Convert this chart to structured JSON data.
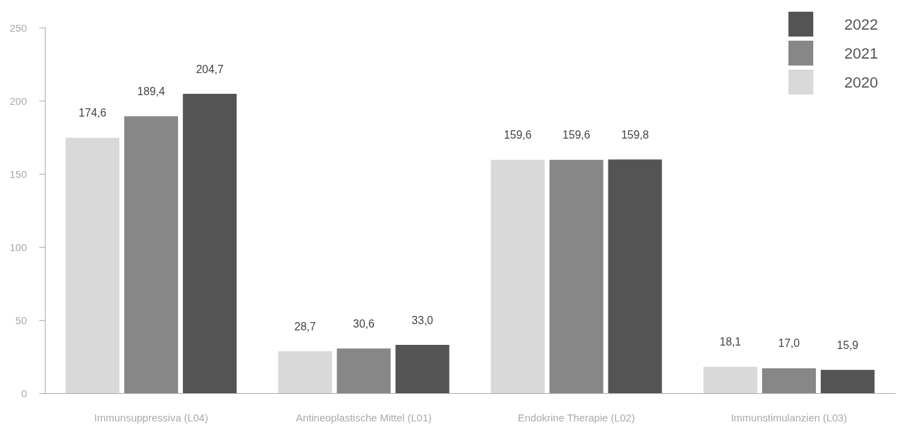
{
  "chart_data": {
    "type": "bar",
    "categories": [
      "Immunsuppressiva (L04)",
      "Antineoplastische Mittel (L01)",
      "Endokrine Therapie (L02)",
      "Immunstimulanzien (L03)"
    ],
    "series": [
      {
        "name": "2020",
        "color": "#d9d9d9",
        "values": [
          174.6,
          28.7,
          159.6,
          18.1
        ],
        "value_labels": [
          "174,6",
          "28,7",
          "159,6",
          "18,1"
        ]
      },
      {
        "name": "2021",
        "color": "#878787",
        "values": [
          189.4,
          30.6,
          159.6,
          17.0
        ],
        "value_labels": [
          "189,4",
          "30,6",
          "159,6",
          "17,0"
        ]
      },
      {
        "name": "2022",
        "color": "#545454",
        "values": [
          204.7,
          33.0,
          159.8,
          15.9
        ],
        "value_labels": [
          "204,7",
          "33,0",
          "159,8",
          "15,9"
        ]
      }
    ],
    "ylim": [
      0,
      250
    ],
    "yticks": [
      0,
      50,
      100,
      150,
      200,
      250
    ],
    "grid": false,
    "legend": "top right"
  }
}
